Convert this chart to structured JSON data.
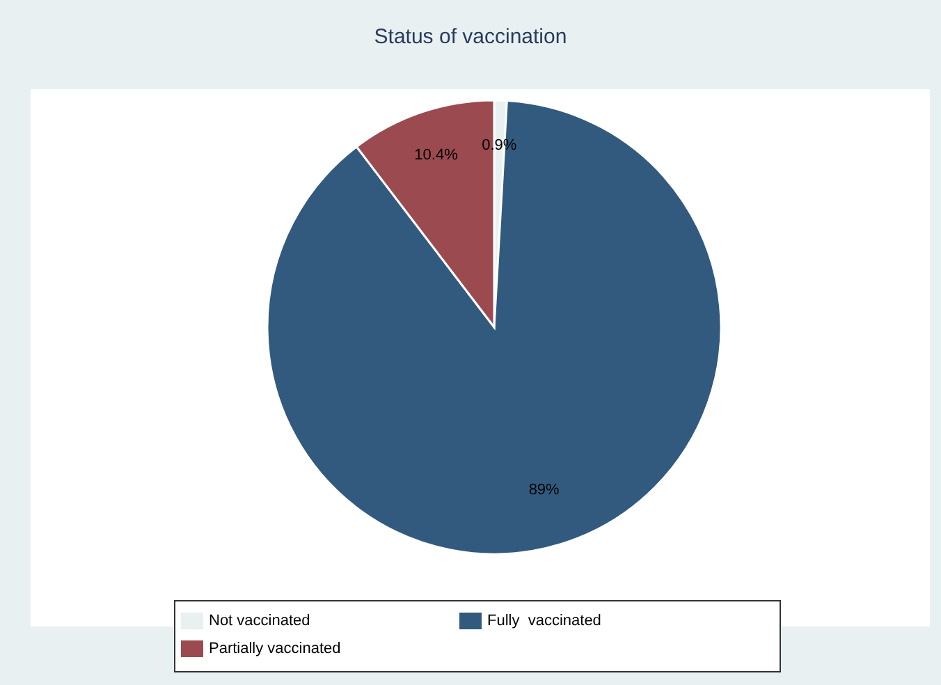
{
  "chart_data": {
    "type": "pie",
    "title": "Status of vaccination",
    "categories": [
      "Not vaccinated",
      "Fully  vaccinated",
      "Partially vaccinated"
    ],
    "values": [
      0.9,
      89,
      10.4
    ],
    "colors": [
      "#e8f0f2",
      "#325a7f",
      "#9b4a50"
    ],
    "value_labels": [
      "0.9%",
      "89%",
      "10.4%"
    ],
    "legend": "bottom"
  }
}
